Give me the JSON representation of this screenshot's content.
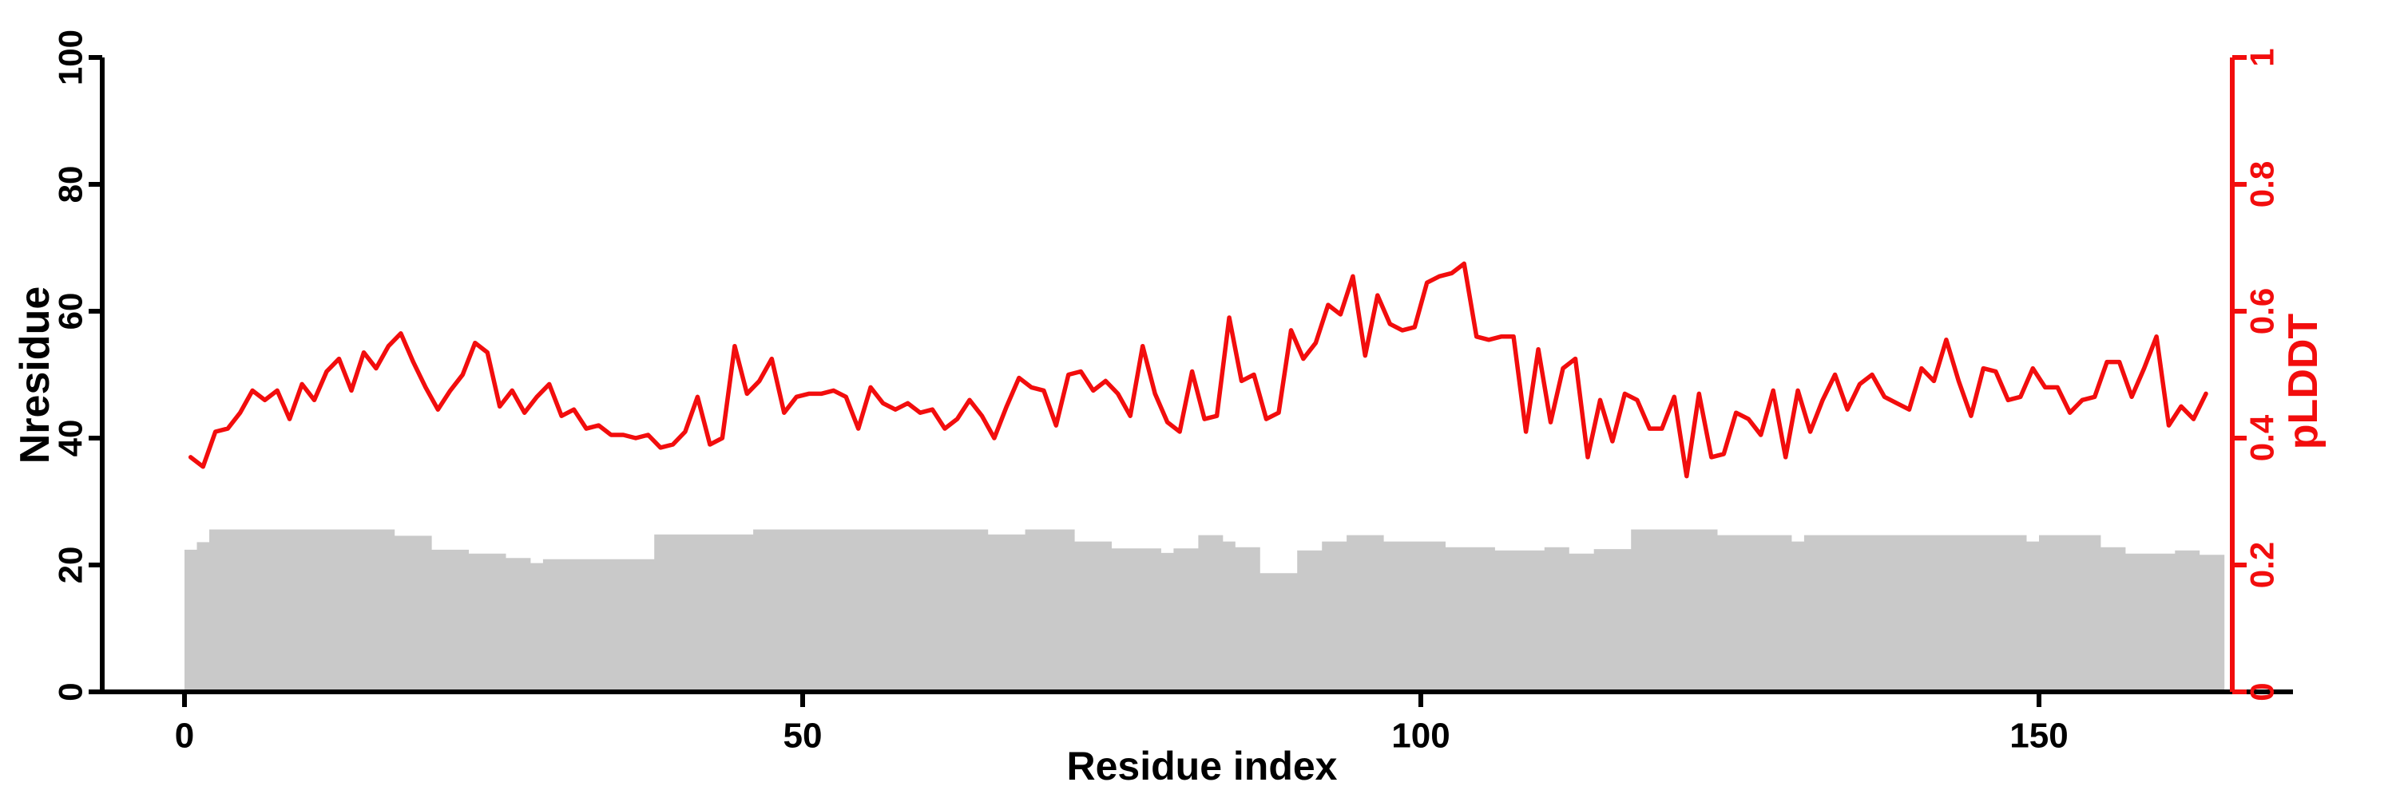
{
  "chart_data": {
    "type": "line",
    "title": "",
    "grid": false,
    "legend": "none",
    "x": {
      "label": "Residue index",
      "ticks": [
        0,
        50,
        100,
        150
      ],
      "range": [
        0,
        166
      ]
    },
    "y_left": {
      "label": "Nresidue",
      "ticks": [
        0,
        20,
        40,
        60,
        80,
        100
      ],
      "range": [
        0,
        100
      ],
      "color": "#000000"
    },
    "y_right": {
      "label": "pLDDT",
      "ticks": [
        "0",
        "0.2",
        "0.4",
        "0.6",
        "0.8",
        "1"
      ],
      "range": [
        0,
        1
      ],
      "color": "#f20d0d"
    },
    "series": [
      {
        "name": "Nresidue",
        "type": "step-area",
        "axis": "left",
        "color": "#c9c9c9",
        "values": [
          22.4,
          23.6,
          25.6,
          25.6,
          25.6,
          25.6,
          25.6,
          25.6,
          25.6,
          25.6,
          25.6,
          25.6,
          25.6,
          25.6,
          25.6,
          25.6,
          25.6,
          24.6,
          24.6,
          24.6,
          22.4,
          22.4,
          22.4,
          21.8,
          21.8,
          21.8,
          21.1,
          21.1,
          20.3,
          20.9,
          20.9,
          20.9,
          20.9,
          20.9,
          20.9,
          20.9,
          20.9,
          20.9,
          24.8,
          24.8,
          24.8,
          24.8,
          24.8,
          24.8,
          24.8,
          24.8,
          25.6,
          25.6,
          25.6,
          25.6,
          25.6,
          25.6,
          25.6,
          25.6,
          25.6,
          25.6,
          25.6,
          25.6,
          25.6,
          25.6,
          25.6,
          25.6,
          25.6,
          25.6,
          25.6,
          24.8,
          24.8,
          24.8,
          25.6,
          25.6,
          25.6,
          25.6,
          23.7,
          23.7,
          23.7,
          22.6,
          22.6,
          22.6,
          22.6,
          21.9,
          22.6,
          22.6,
          24.7,
          24.7,
          23.7,
          22.8,
          22.8,
          18.7,
          18.7,
          18.7,
          22.3,
          22.3,
          23.7,
          23.7,
          24.7,
          24.7,
          24.7,
          23.7,
          23.7,
          23.7,
          23.7,
          23.7,
          22.8,
          22.8,
          22.8,
          22.8,
          22.3,
          22.3,
          22.3,
          22.3,
          22.8,
          22.8,
          21.8,
          21.8,
          22.5,
          22.5,
          22.5,
          25.6,
          25.6,
          25.6,
          25.6,
          25.6,
          25.6,
          25.6,
          24.7,
          24.7,
          24.7,
          24.7,
          24.7,
          24.7,
          23.7,
          24.7,
          24.7,
          24.7,
          24.7,
          24.7,
          24.7,
          24.7,
          24.7,
          24.7,
          24.7,
          24.7,
          24.7,
          24.7,
          24.7,
          24.7,
          24.7,
          24.7,
          24.7,
          23.7,
          24.7,
          24.7,
          24.7,
          24.7,
          24.7,
          22.8,
          22.8,
          21.8,
          21.8,
          21.8,
          21.8,
          22.3,
          22.3,
          21.6,
          21.6
        ]
      },
      {
        "name": "pLDDT",
        "type": "line",
        "axis": "right",
        "color": "#f20d0d",
        "values": [
          0.37,
          0.355,
          0.41,
          0.415,
          0.44,
          0.475,
          0.46,
          0.475,
          0.43,
          0.485,
          0.46,
          0.505,
          0.525,
          0.475,
          0.535,
          0.51,
          0.545,
          0.565,
          0.52,
          0.48,
          0.445,
          0.475,
          0.5,
          0.55,
          0.535,
          0.45,
          0.475,
          0.44,
          0.465,
          0.485,
          0.435,
          0.445,
          0.415,
          0.42,
          0.405,
          0.405,
          0.4,
          0.405,
          0.385,
          0.39,
          0.41,
          0.465,
          0.39,
          0.4,
          0.545,
          0.47,
          0.49,
          0.525,
          0.44,
          0.465,
          0.47,
          0.47,
          0.475,
          0.465,
          0.415,
          0.48,
          0.455,
          0.445,
          0.455,
          0.44,
          0.445,
          0.415,
          0.43,
          0.46,
          0.435,
          0.4,
          0.45,
          0.495,
          0.48,
          0.475,
          0.42,
          0.5,
          0.505,
          0.475,
          0.49,
          0.47,
          0.435,
          0.545,
          0.47,
          0.425,
          0.41,
          0.505,
          0.43,
          0.435,
          0.59,
          0.49,
          0.5,
          0.43,
          0.44,
          0.57,
          0.525,
          0.55,
          0.61,
          0.595,
          0.655,
          0.53,
          0.625,
          0.58,
          0.57,
          0.575,
          0.645,
          0.655,
          0.66,
          0.675,
          0.56,
          0.555,
          0.56,
          0.56,
          0.41,
          0.54,
          0.425,
          0.51,
          0.525,
          0.37,
          0.46,
          0.395,
          0.47,
          0.46,
          0.415,
          0.415,
          0.465,
          0.34,
          0.47,
          0.37,
          0.375,
          0.44,
          0.43,
          0.405,
          0.475,
          0.37,
          0.475,
          0.41,
          0.46,
          0.5,
          0.445,
          0.485,
          0.5,
          0.465,
          0.455,
          0.445,
          0.51,
          0.49,
          0.555,
          0.49,
          0.435,
          0.51,
          0.505,
          0.46,
          0.465,
          0.51,
          0.48,
          0.48,
          0.44,
          0.46,
          0.465,
          0.52,
          0.52,
          0.465,
          0.51,
          0.56,
          0.42,
          0.45,
          0.43,
          0.47
        ]
      }
    ]
  }
}
